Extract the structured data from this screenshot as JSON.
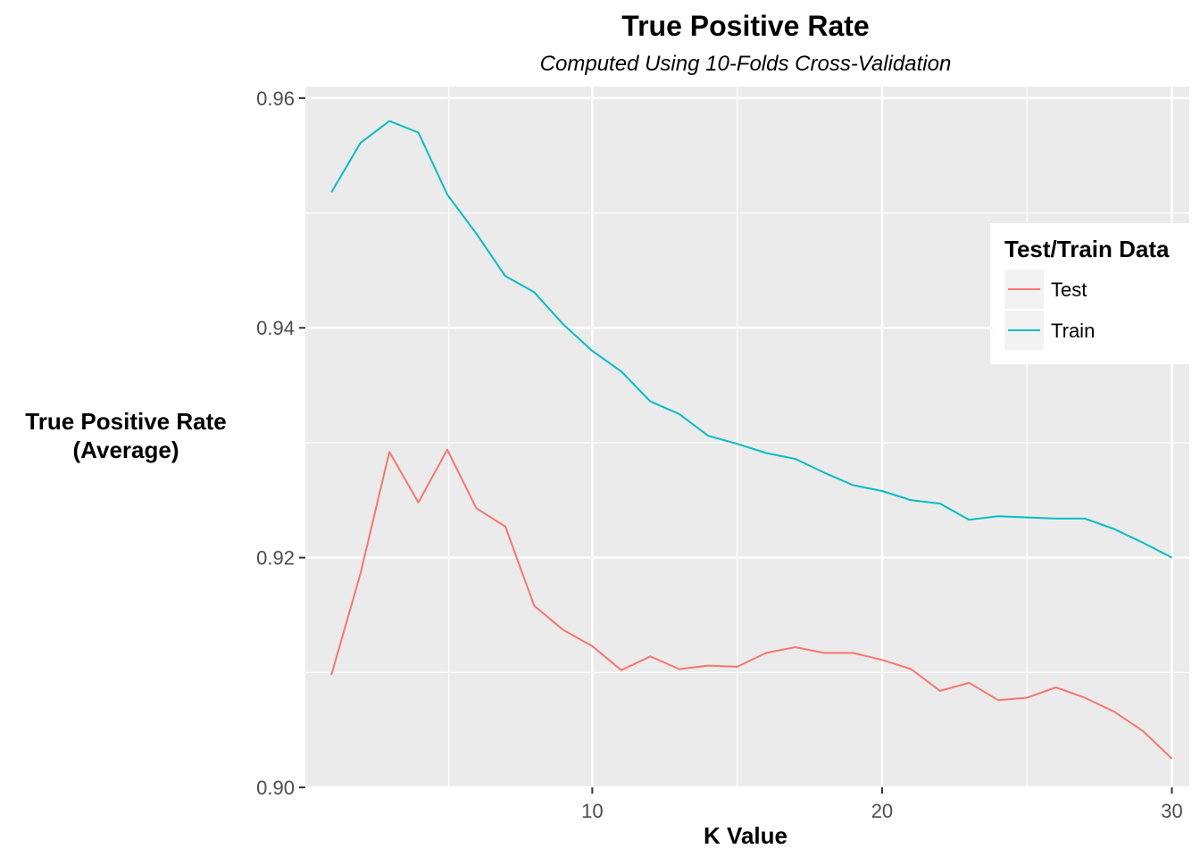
{
  "chart_data": {
    "type": "line",
    "title": "True Positive Rate",
    "subtitle": "Computed Using 10-Folds Cross-Validation",
    "xlabel": "K Value",
    "ylabel_lines": [
      "True Positive Rate",
      "(Average)"
    ],
    "xlim": [
      0.1,
      30.6
    ],
    "ylim": [
      0.9,
      0.961
    ],
    "x_ticks": [
      10,
      20,
      30
    ],
    "x_tick_labels": [
      "10",
      "20",
      "30"
    ],
    "y_ticks": [
      0.9,
      0.92,
      0.94,
      0.96
    ],
    "y_tick_labels": [
      "0.90",
      "0.92",
      "0.94",
      "0.96"
    ],
    "grid": true,
    "background": "#ebebeb",
    "legend": {
      "title": "Test/Train Data",
      "position": "right"
    },
    "x": [
      1,
      2,
      3,
      4,
      5,
      6,
      7,
      8,
      9,
      10,
      11,
      12,
      13,
      14,
      15,
      16,
      17,
      18,
      19,
      20,
      21,
      22,
      23,
      24,
      25,
      26,
      27,
      28,
      29,
      30
    ],
    "series": [
      {
        "name": "Test",
        "color": "#F8766D",
        "values": [
          0.9098,
          0.9186,
          0.9292,
          0.9248,
          0.9294,
          0.9243,
          0.9227,
          0.9158,
          0.9137,
          0.9123,
          0.9102,
          0.9114,
          0.9103,
          0.9106,
          0.9105,
          0.9117,
          0.9122,
          0.9117,
          0.9117,
          0.9111,
          0.9103,
          0.9084,
          0.9091,
          0.9076,
          0.9078,
          0.9087,
          0.9078,
          0.9066,
          0.9049,
          0.9025
        ]
      },
      {
        "name": "Train",
        "color": "#00BFC4",
        "values": [
          0.9518,
          0.9561,
          0.958,
          0.957,
          0.9516,
          0.9482,
          0.9445,
          0.9431,
          0.9403,
          0.938,
          0.9362,
          0.9336,
          0.9325,
          0.9306,
          0.9299,
          0.9291,
          0.9286,
          0.9274,
          0.9263,
          0.9258,
          0.925,
          0.9247,
          0.9233,
          0.9236,
          0.9235,
          0.9234,
          0.9234,
          0.9225,
          0.9213,
          0.92
        ]
      }
    ]
  }
}
